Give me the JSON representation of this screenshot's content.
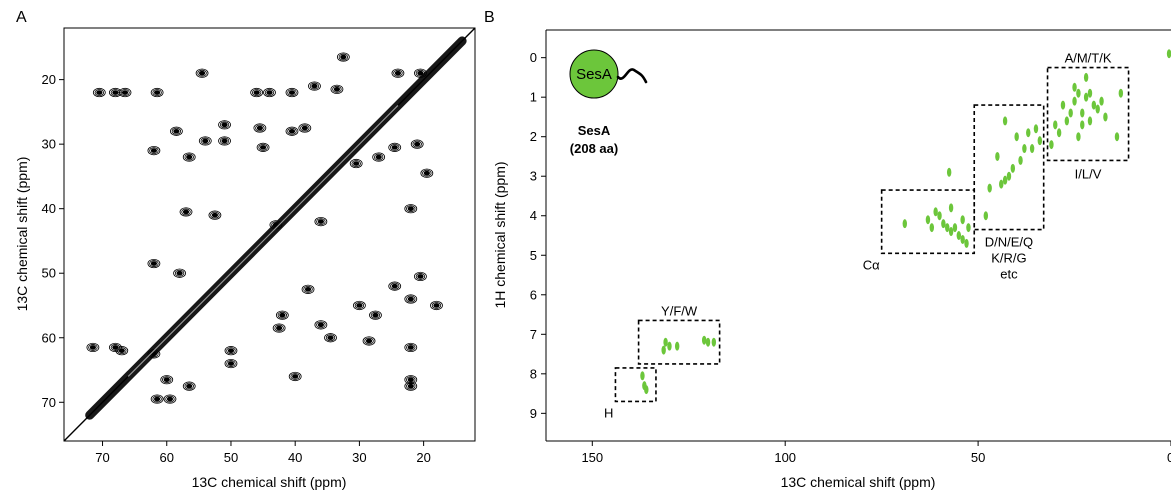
{
  "chart_data": [
    {
      "type": "contour",
      "panel_label": "A",
      "xlabel": "13C chemical shift (ppm)",
      "ylabel": "13C chemical shift (ppm)",
      "xlim": [
        76,
        12
      ],
      "ylim": [
        76,
        12
      ],
      "x_ticks": [
        70,
        60,
        50,
        40,
        30,
        20
      ],
      "y_ticks": [
        20,
        30,
        40,
        50,
        60,
        70
      ],
      "grid": false,
      "color": "#000000",
      "diagonal": {
        "from": [
          76,
          76
        ],
        "to": [
          12,
          12
        ]
      },
      "peaks": [
        {
          "x": 70.5,
          "y": 22.0
        },
        {
          "x": 68.0,
          "y": 22.0
        },
        {
          "x": 66.5,
          "y": 22.0
        },
        {
          "x": 61.5,
          "y": 22.0
        },
        {
          "x": 54.5,
          "y": 19.0
        },
        {
          "x": 46.0,
          "y": 22.0
        },
        {
          "x": 44.0,
          "y": 22.0
        },
        {
          "x": 40.5,
          "y": 22.0
        },
        {
          "x": 62.0,
          "y": 31.0
        },
        {
          "x": 58.5,
          "y": 28.0
        },
        {
          "x": 56.5,
          "y": 32.0
        },
        {
          "x": 54.0,
          "y": 29.5
        },
        {
          "x": 51.0,
          "y": 27.0
        },
        {
          "x": 51.0,
          "y": 29.5
        },
        {
          "x": 45.0,
          "y": 30.5
        },
        {
          "x": 45.5,
          "y": 27.5
        },
        {
          "x": 40.5,
          "y": 28.0
        },
        {
          "x": 38.5,
          "y": 27.5
        },
        {
          "x": 37.0,
          "y": 21.0
        },
        {
          "x": 33.5,
          "y": 21.5
        },
        {
          "x": 32.5,
          "y": 16.5
        },
        {
          "x": 24.0,
          "y": 19.0
        },
        {
          "x": 20.5,
          "y": 19.0
        },
        {
          "x": 21.0,
          "y": 30.0
        },
        {
          "x": 19.5,
          "y": 34.5
        },
        {
          "x": 30.5,
          "y": 33.0
        },
        {
          "x": 27.0,
          "y": 32.0
        },
        {
          "x": 24.5,
          "y": 30.5
        },
        {
          "x": 57.0,
          "y": 40.5
        },
        {
          "x": 52.5,
          "y": 41.0
        },
        {
          "x": 43.0,
          "y": 42.5
        },
        {
          "x": 36.0,
          "y": 42.0
        },
        {
          "x": 22.0,
          "y": 40.0
        },
        {
          "x": 38.0,
          "y": 52.5
        },
        {
          "x": 30.0,
          "y": 55.0
        },
        {
          "x": 27.5,
          "y": 56.5
        },
        {
          "x": 36.0,
          "y": 58.0
        },
        {
          "x": 24.5,
          "y": 52.0
        },
        {
          "x": 22.0,
          "y": 54.0
        },
        {
          "x": 20.5,
          "y": 50.5
        },
        {
          "x": 18.0,
          "y": 55.0
        },
        {
          "x": 42.0,
          "y": 56.5
        },
        {
          "x": 28.5,
          "y": 60.5
        },
        {
          "x": 22.0,
          "y": 61.5
        },
        {
          "x": 34.5,
          "y": 60.0
        },
        {
          "x": 22.0,
          "y": 67.5
        },
        {
          "x": 60.0,
          "y": 66.5
        },
        {
          "x": 62.0,
          "y": 62.5
        },
        {
          "x": 71.5,
          "y": 61.5
        },
        {
          "x": 68.0,
          "y": 61.5
        },
        {
          "x": 67.0,
          "y": 62.0
        },
        {
          "x": 61.5,
          "y": 69.5
        },
        {
          "x": 59.5,
          "y": 69.5
        },
        {
          "x": 56.5,
          "y": 67.5
        },
        {
          "x": 42.5,
          "y": 58.5
        },
        {
          "x": 58.0,
          "y": 50.0
        },
        {
          "x": 62.0,
          "y": 48.5
        },
        {
          "x": 40.0,
          "y": 66.0
        },
        {
          "x": 50.0,
          "y": 62.0
        },
        {
          "x": 50.0,
          "y": 64.0
        },
        {
          "x": 22.0,
          "y": 66.5
        }
      ]
    },
    {
      "type": "scatter",
      "panel_label": "B",
      "xlabel": "13C chemical shift (ppm)",
      "ylabel": "1H chemical shift (ppm)",
      "xlim": [
        162,
        0
      ],
      "ylim": [
        9.7,
        -0.7
      ],
      "x_ticks": [
        150,
        100,
        50,
        0
      ],
      "y_ticks": [
        0,
        1,
        2,
        3,
        4,
        5,
        6,
        7,
        8,
        9
      ],
      "grid": false,
      "color": "#6cc63b",
      "regions": [
        {
          "label": "A/M/T/K",
          "x": [
            32,
            11
          ],
          "y": [
            0.25,
            2.6
          ],
          "label_pos": "top"
        },
        {
          "label": "I/L/V",
          "x": [
            32,
            11
          ],
          "y": [
            0.25,
            2.6
          ],
          "label_pos": "bottom"
        },
        {
          "label": "D/N/E/Q",
          "x": [
            51,
            33
          ],
          "y": [
            1.2,
            4.35
          ],
          "label_pos": "below"
        },
        {
          "label": "K/R/G",
          "x": [
            51,
            33
          ],
          "y": [
            1.2,
            4.35
          ],
          "label_pos": "below2"
        },
        {
          "label": "etc",
          "x": [
            51,
            33
          ],
          "y": [
            1.2,
            4.35
          ],
          "label_pos": "below3"
        },
        {
          "label": "Cα",
          "x": [
            75,
            51
          ],
          "y": [
            3.35,
            4.95
          ],
          "label_pos": "bottom-left"
        },
        {
          "label": "Y/F/W",
          "x": [
            138,
            117
          ],
          "y": [
            6.65,
            7.75
          ],
          "label_pos": "top"
        },
        {
          "label": "H",
          "x": [
            144,
            133.5
          ],
          "y": [
            7.85,
            8.7
          ],
          "label_pos": "bottom-left"
        }
      ],
      "peaks": [
        {
          "x": 13,
          "y": 0.9
        },
        {
          "x": 18,
          "y": 1.1
        },
        {
          "x": 19,
          "y": 1.3
        },
        {
          "x": 20,
          "y": 1.2
        },
        {
          "x": 21,
          "y": 0.9
        },
        {
          "x": 22,
          "y": 1.0
        },
        {
          "x": 23,
          "y": 1.4
        },
        {
          "x": 24,
          "y": 0.9
        },
        {
          "x": 25,
          "y": 1.1
        },
        {
          "x": 26,
          "y": 1.4
        },
        {
          "x": 27,
          "y": 1.6
        },
        {
          "x": 28,
          "y": 1.2
        },
        {
          "x": 29,
          "y": 1.9
        },
        {
          "x": 30,
          "y": 1.7
        },
        {
          "x": 31,
          "y": 2.2
        },
        {
          "x": 21,
          "y": 1.6
        },
        {
          "x": 24,
          "y": 2.0
        },
        {
          "x": 23,
          "y": 1.7
        },
        {
          "x": 17,
          "y": 1.5
        },
        {
          "x": 14,
          "y": 2.0
        },
        {
          "x": 25,
          "y": 0.75
        },
        {
          "x": 22,
          "y": 0.5
        },
        {
          "x": 34,
          "y": 2.1
        },
        {
          "x": 36,
          "y": 2.3
        },
        {
          "x": 38,
          "y": 2.3
        },
        {
          "x": 39,
          "y": 2.6
        },
        {
          "x": 41,
          "y": 2.8
        },
        {
          "x": 42,
          "y": 3.0
        },
        {
          "x": 43,
          "y": 3.1
        },
        {
          "x": 44,
          "y": 3.2
        },
        {
          "x": 45,
          "y": 2.5
        },
        {
          "x": 37,
          "y": 1.9
        },
        {
          "x": 40,
          "y": 2.0
        },
        {
          "x": 48,
          "y": 4.0
        },
        {
          "x": 43,
          "y": 1.6
        },
        {
          "x": 35,
          "y": 1.8
        },
        {
          "x": 47,
          "y": 3.3
        },
        {
          "x": 60,
          "y": 4.0
        },
        {
          "x": 62,
          "y": 4.3
        },
        {
          "x": 61,
          "y": 3.9
        },
        {
          "x": 59,
          "y": 4.2
        },
        {
          "x": 58,
          "y": 4.3
        },
        {
          "x": 57,
          "y": 4.4
        },
        {
          "x": 56,
          "y": 4.3
        },
        {
          "x": 55,
          "y": 4.5
        },
        {
          "x": 54,
          "y": 4.6
        },
        {
          "x": 53,
          "y": 4.7
        },
        {
          "x": 52.5,
          "y": 4.3
        },
        {
          "x": 57,
          "y": 3.8
        },
        {
          "x": 54,
          "y": 4.1
        },
        {
          "x": 63,
          "y": 4.1
        },
        {
          "x": 69,
          "y": 4.2
        },
        {
          "x": 57.5,
          "y": 2.9
        },
        {
          "x": 131,
          "y": 7.2
        },
        {
          "x": 131.5,
          "y": 7.4
        },
        {
          "x": 130,
          "y": 7.3
        },
        {
          "x": 128,
          "y": 7.3
        },
        {
          "x": 121,
          "y": 7.15
        },
        {
          "x": 120,
          "y": 7.2
        },
        {
          "x": 118.5,
          "y": 7.2
        },
        {
          "x": 137,
          "y": 8.05
        },
        {
          "x": 136.5,
          "y": 8.3
        },
        {
          "x": 136,
          "y": 8.4
        },
        {
          "x": 0.5,
          "y": -0.1
        }
      ]
    }
  ],
  "inset": {
    "protein_label": "SesA",
    "caption_line1": "SesA",
    "caption_line2": "(208 aa)",
    "color": "#6cc63b"
  }
}
